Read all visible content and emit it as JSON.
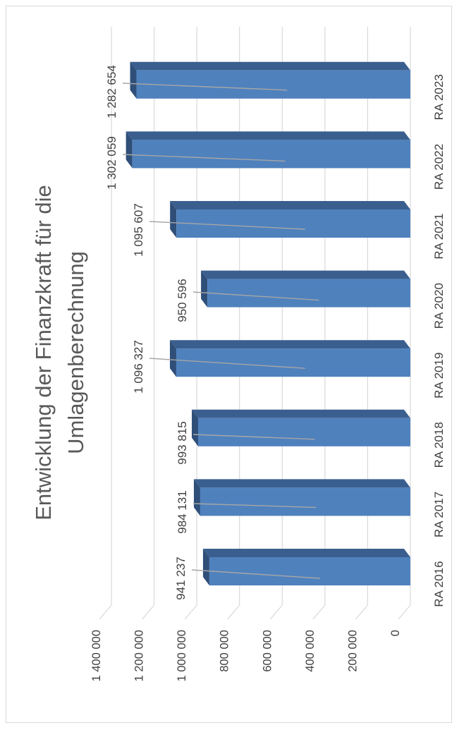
{
  "chart_data": {
    "type": "bar",
    "orientation": "vertical-3d",
    "rotated_view": "90deg-counterclockwise",
    "title": "Entwicklung der Finanzkraft für die Umlagenberechnung",
    "title_lines": [
      "Entwicklung der Finanzkraft für die",
      "Umlagenberechnung"
    ],
    "categories": [
      "RA 2016",
      "RA 2017",
      "RA 2018",
      "RA 2019",
      "RA 2020",
      "RA 2021",
      "RA 2022",
      "RA 2023"
    ],
    "values": [
      941237,
      984131,
      993815,
      1096327,
      950596,
      1095607,
      1302059,
      1282654
    ],
    "value_labels": [
      "941 237",
      "984 131",
      "993 815",
      "1 096 327",
      "950 596",
      "1 095 607",
      "1 302 059",
      "1 282 654"
    ],
    "y_ticks": [
      0,
      200000,
      400000,
      600000,
      800000,
      1000000,
      1200000,
      1400000
    ],
    "y_tick_labels": [
      "0",
      "200 000",
      "400 000",
      "600 000",
      "800 000",
      "1 000 000",
      "1 200 000",
      "1 400 000"
    ],
    "ylim": [
      0,
      1400000
    ],
    "grid": true,
    "legend": "none",
    "colors": {
      "bar_front": "#4f81bd",
      "bar_side": "#2f4f79",
      "bar_top": "#3a5f8f",
      "grid": "#d9d9d9",
      "leader": "#a6a6a6",
      "text": "#404040",
      "title": "#595959"
    }
  }
}
